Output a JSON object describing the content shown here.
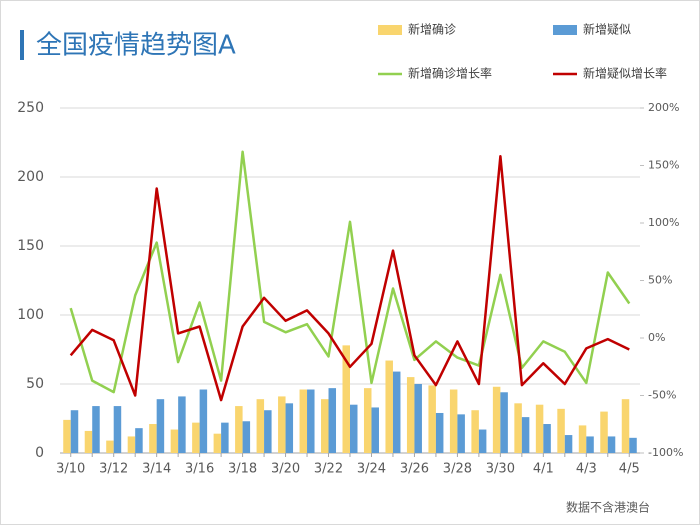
{
  "chart_data": {
    "type": "bar-line",
    "title": "全国疫情趋势图A",
    "note": "数据不含港澳台",
    "categories": [
      "3/10",
      null,
      "3/12",
      null,
      "3/14",
      null,
      "3/16",
      null,
      "3/18",
      null,
      "3/20",
      null,
      "3/22",
      null,
      "3/24",
      null,
      "3/26",
      null,
      "3/28",
      null,
      "3/30",
      null,
      "4/1",
      null,
      "4/3",
      null,
      "4/5"
    ],
    "series": [
      {
        "name": "新增确诊",
        "type": "bar",
        "color": "#f9d56e",
        "values": [
          24,
          16,
          9,
          12,
          21,
          17,
          22,
          14,
          34,
          39,
          41,
          46,
          39,
          78,
          47,
          67,
          55,
          49,
          46,
          31,
          48,
          36,
          35,
          32,
          20,
          30,
          39
        ]
      },
      {
        "name": "新增疑似",
        "type": "bar",
        "color": "#5b9bd5",
        "values": [
          31,
          34,
          34,
          18,
          39,
          41,
          46,
          22,
          23,
          31,
          36,
          46,
          47,
          35,
          33,
          59,
          50,
          29,
          28,
          17,
          44,
          26,
          21,
          13,
          12,
          12,
          11
        ]
      },
      {
        "name": "新增确诊增长率",
        "type": "line",
        "axis": "y2",
        "color": "#92d050",
        "values": [
          26,
          -37,
          -47,
          37,
          83,
          -21,
          31,
          -37,
          162,
          14,
          5,
          12,
          -16,
          101,
          -39,
          43,
          -19,
          -3,
          -17,
          -24,
          55,
          -26,
          -3,
          -12,
          -39,
          57,
          30
        ]
      },
      {
        "name": "新增疑似增长率",
        "type": "line",
        "axis": "y2",
        "color": "#c00000",
        "values": [
          -15,
          7,
          -2,
          -50,
          130,
          4,
          10,
          -54,
          10,
          35,
          15,
          24,
          4,
          -25,
          -5,
          76,
          -15,
          -41,
          -3,
          -40,
          158,
          -41,
          -22,
          -40,
          -9,
          -1,
          -10
        ]
      }
    ],
    "ylim": [
      0,
      250
    ],
    "yticks": [
      0,
      50,
      100,
      150,
      200,
      250
    ],
    "y2lim": [
      -100,
      200
    ],
    "y2ticks": [
      {
        "value": -100,
        "label": "-100%"
      },
      {
        "value": -50,
        "label": "-50%"
      },
      {
        "value": 0,
        "label": "0%"
      },
      {
        "value": 50,
        "label": "50%"
      },
      {
        "value": 100,
        "label": "100%"
      },
      {
        "value": 150,
        "label": "150%"
      },
      {
        "value": 200,
        "label": "200%"
      }
    ],
    "grid": true
  }
}
